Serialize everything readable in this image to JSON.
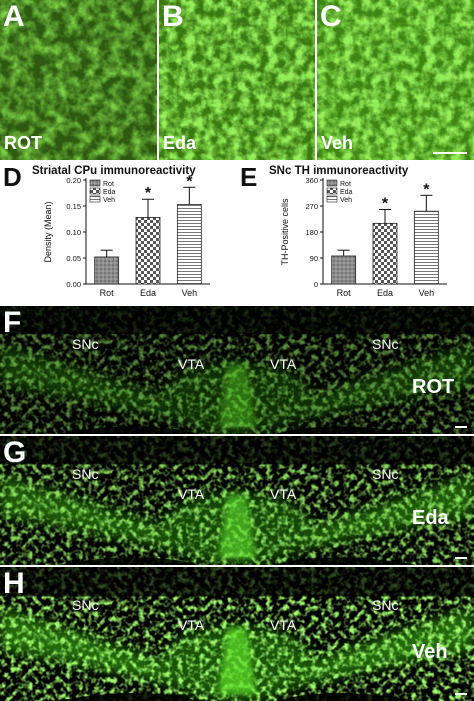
{
  "top_panels": [
    {
      "letter": "A",
      "label": "ROT"
    },
    {
      "letter": "B",
      "label": "Eda"
    },
    {
      "letter": "C",
      "label": "Veh"
    }
  ],
  "colors": {
    "fluor_green": "#5dd71e",
    "bar_fill": "#8a8a8a",
    "bar_stroke": "#222222"
  },
  "chart_data": [
    {
      "type": "bar",
      "letter": "D",
      "title": "Striatal CPu immunoreactivity",
      "ylabel": "Density (Mean)",
      "xlabel": "",
      "categories": [
        "Rot",
        "Eda",
        "Veh"
      ],
      "values": [
        0.052,
        0.128,
        0.153
      ],
      "errors": [
        0.013,
        0.035,
        0.033
      ],
      "significance": [
        "",
        "*",
        "*"
      ],
      "ylim": [
        0,
        0.2
      ],
      "yticks": [
        "0.00",
        "0.05",
        "0.10",
        "0.15",
        "0.20"
      ],
      "ytick_values": [
        0,
        0.05,
        0.1,
        0.15,
        0.2
      ],
      "legend": [
        "Rot",
        "Eda",
        "Veh"
      ],
      "legend_position": "top-left",
      "patterns": [
        "dots",
        "checker",
        "hlines"
      ]
    },
    {
      "type": "bar",
      "letter": "E",
      "title": "SNc TH immunoreactivity",
      "ylabel": "TH-Positive cells",
      "xlabel": "",
      "categories": [
        "Rot",
        "Eda",
        "Veh"
      ],
      "values": [
        97,
        210,
        252
      ],
      "errors": [
        20,
        48,
        55
      ],
      "significance": [
        "",
        "*",
        "*"
      ],
      "ylim": [
        0,
        360
      ],
      "yticks": [
        "0",
        "90",
        "180",
        "270",
        "360"
      ],
      "ytick_values": [
        0,
        90,
        180,
        270,
        360
      ],
      "legend": [
        "Rot",
        "Eda",
        "Veh"
      ],
      "legend_position": "top-left",
      "patterns": [
        "dots",
        "checker",
        "hlines"
      ]
    }
  ],
  "section_panels": [
    {
      "letter": "F",
      "group": "ROT",
      "snc_left": "SNc",
      "vta_left": "VTA",
      "vta_right": "VTA",
      "snc_right": "SNc",
      "intensity": 0.55
    },
    {
      "letter": "G",
      "group": "Eda",
      "snc_left": "SNc",
      "vta_left": "VTA",
      "vta_right": "VTA",
      "snc_right": "SNc",
      "intensity": 0.85
    },
    {
      "letter": "H",
      "group": "Veh",
      "snc_left": "SNc",
      "vta_left": "VTA",
      "vta_right": "VTA",
      "snc_right": "SNc",
      "intensity": 1.0
    }
  ]
}
